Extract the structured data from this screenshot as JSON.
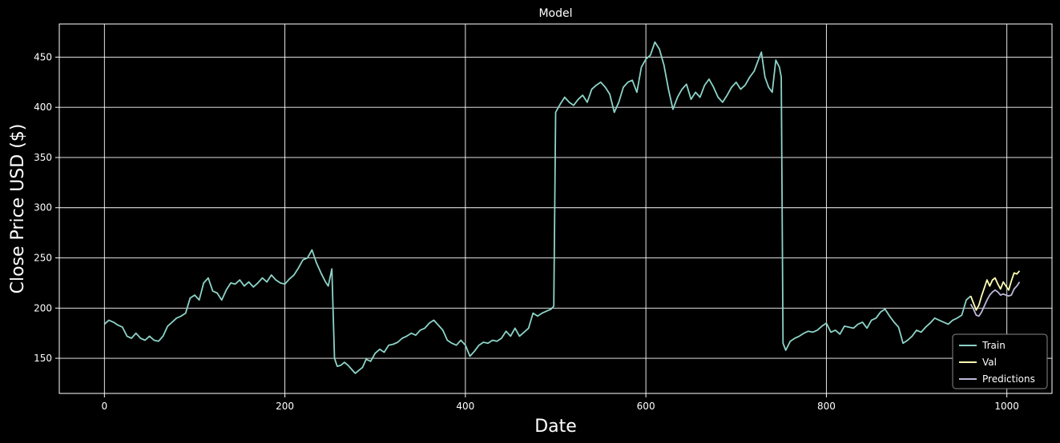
{
  "chart_data": {
    "type": "line",
    "title": "Model",
    "xlabel": "Date",
    "ylabel": "Close Price USD ($)",
    "xlim": [
      -50,
      1050
    ],
    "ylim": [
      115,
      483
    ],
    "xticks": [
      0,
      200,
      400,
      600,
      800,
      1000
    ],
    "yticks": [
      150,
      200,
      250,
      300,
      350,
      400,
      450
    ],
    "grid": true,
    "legend_position": "bottom-right",
    "background": "#000000",
    "series": [
      {
        "name": "Train",
        "color": "#8dd3c7",
        "points": [
          [
            0,
            184
          ],
          [
            5,
            188
          ],
          [
            10,
            186
          ],
          [
            15,
            183
          ],
          [
            20,
            181
          ],
          [
            25,
            172
          ],
          [
            30,
            170
          ],
          [
            35,
            175
          ],
          [
            40,
            170
          ],
          [
            45,
            168
          ],
          [
            50,
            172
          ],
          [
            55,
            168
          ],
          [
            60,
            167
          ],
          [
            65,
            172
          ],
          [
            70,
            182
          ],
          [
            75,
            186
          ],
          [
            80,
            190
          ],
          [
            85,
            192
          ],
          [
            90,
            195
          ],
          [
            95,
            210
          ],
          [
            100,
            213
          ],
          [
            105,
            208
          ],
          [
            110,
            225
          ],
          [
            115,
            230
          ],
          [
            120,
            217
          ],
          [
            125,
            215
          ],
          [
            130,
            208
          ],
          [
            135,
            218
          ],
          [
            140,
            225
          ],
          [
            145,
            224
          ],
          [
            150,
            228
          ],
          [
            155,
            222
          ],
          [
            160,
            226
          ],
          [
            165,
            221
          ],
          [
            170,
            225
          ],
          [
            175,
            230
          ],
          [
            180,
            226
          ],
          [
            185,
            233
          ],
          [
            190,
            228
          ],
          [
            195,
            225
          ],
          [
            200,
            224
          ],
          [
            205,
            229
          ],
          [
            210,
            233
          ],
          [
            215,
            240
          ],
          [
            220,
            248
          ],
          [
            225,
            250
          ],
          [
            230,
            258
          ],
          [
            235,
            245
          ],
          [
            240,
            235
          ],
          [
            245,
            226
          ],
          [
            248,
            222
          ],
          [
            252,
            239
          ],
          [
            255,
            150
          ],
          [
            258,
            142
          ],
          [
            262,
            143
          ],
          [
            266,
            146
          ],
          [
            270,
            143
          ],
          [
            274,
            139
          ],
          [
            278,
            135
          ],
          [
            282,
            138
          ],
          [
            286,
            141
          ],
          [
            290,
            149
          ],
          [
            295,
            147
          ],
          [
            300,
            155
          ],
          [
            305,
            159
          ],
          [
            310,
            156
          ],
          [
            315,
            163
          ],
          [
            320,
            164
          ],
          [
            325,
            166
          ],
          [
            330,
            170
          ],
          [
            335,
            172
          ],
          [
            340,
            175
          ],
          [
            345,
            173
          ],
          [
            350,
            178
          ],
          [
            355,
            180
          ],
          [
            360,
            185
          ],
          [
            365,
            188
          ],
          [
            370,
            183
          ],
          [
            375,
            178
          ],
          [
            380,
            168
          ],
          [
            385,
            165
          ],
          [
            390,
            163
          ],
          [
            395,
            168
          ],
          [
            400,
            163
          ],
          [
            405,
            152
          ],
          [
            410,
            157
          ],
          [
            415,
            163
          ],
          [
            420,
            166
          ],
          [
            425,
            165
          ],
          [
            430,
            168
          ],
          [
            435,
            167
          ],
          [
            440,
            170
          ],
          [
            445,
            177
          ],
          [
            450,
            172
          ],
          [
            455,
            180
          ],
          [
            460,
            172
          ],
          [
            465,
            176
          ],
          [
            470,
            180
          ],
          [
            475,
            195
          ],
          [
            480,
            192
          ],
          [
            485,
            195
          ],
          [
            490,
            197
          ],
          [
            495,
            199
          ],
          [
            498,
            202
          ],
          [
            500,
            395
          ],
          [
            505,
            403
          ],
          [
            510,
            410
          ],
          [
            515,
            405
          ],
          [
            520,
            402
          ],
          [
            525,
            408
          ],
          [
            530,
            412
          ],
          [
            535,
            405
          ],
          [
            540,
            418
          ],
          [
            545,
            422
          ],
          [
            550,
            425
          ],
          [
            555,
            420
          ],
          [
            560,
            413
          ],
          [
            565,
            395
          ],
          [
            570,
            405
          ],
          [
            575,
            420
          ],
          [
            580,
            425
          ],
          [
            585,
            427
          ],
          [
            590,
            415
          ],
          [
            595,
            440
          ],
          [
            600,
            448
          ],
          [
            605,
            452
          ],
          [
            610,
            465
          ],
          [
            615,
            458
          ],
          [
            620,
            442
          ],
          [
            625,
            418
          ],
          [
            630,
            398
          ],
          [
            635,
            410
          ],
          [
            640,
            418
          ],
          [
            645,
            423
          ],
          [
            650,
            408
          ],
          [
            655,
            415
          ],
          [
            660,
            410
          ],
          [
            665,
            422
          ],
          [
            670,
            428
          ],
          [
            675,
            420
          ],
          [
            680,
            410
          ],
          [
            685,
            405
          ],
          [
            690,
            412
          ],
          [
            695,
            420
          ],
          [
            700,
            425
          ],
          [
            705,
            418
          ],
          [
            710,
            422
          ],
          [
            715,
            430
          ],
          [
            720,
            436
          ],
          [
            725,
            448
          ],
          [
            728,
            455
          ],
          [
            732,
            430
          ],
          [
            736,
            420
          ],
          [
            740,
            415
          ],
          [
            744,
            447
          ],
          [
            748,
            440
          ],
          [
            750,
            430
          ],
          [
            752,
            165
          ],
          [
            755,
            158
          ],
          [
            760,
            167
          ],
          [
            765,
            170
          ],
          [
            770,
            172
          ],
          [
            775,
            175
          ],
          [
            780,
            177
          ],
          [
            785,
            176
          ],
          [
            790,
            178
          ],
          [
            795,
            182
          ],
          [
            800,
            185
          ],
          [
            805,
            176
          ],
          [
            810,
            178
          ],
          [
            815,
            174
          ],
          [
            820,
            182
          ],
          [
            825,
            181
          ],
          [
            830,
            180
          ],
          [
            835,
            184
          ],
          [
            840,
            186
          ],
          [
            845,
            180
          ],
          [
            850,
            188
          ],
          [
            855,
            190
          ],
          [
            860,
            196
          ],
          [
            865,
            199
          ],
          [
            870,
            192
          ],
          [
            875,
            186
          ],
          [
            880,
            181
          ],
          [
            885,
            165
          ],
          [
            890,
            168
          ],
          [
            895,
            172
          ],
          [
            900,
            178
          ],
          [
            905,
            176
          ],
          [
            910,
            181
          ],
          [
            915,
            185
          ],
          [
            920,
            190
          ],
          [
            925,
            188
          ],
          [
            930,
            186
          ],
          [
            935,
            184
          ],
          [
            940,
            188
          ],
          [
            945,
            190
          ],
          [
            950,
            193
          ],
          [
            955,
            208
          ],
          [
            960,
            212
          ]
        ]
      },
      {
        "name": "Val",
        "color": "#ffffb3",
        "points": [
          [
            960,
            212
          ],
          [
            963,
            205
          ],
          [
            966,
            198
          ],
          [
            969,
            203
          ],
          [
            972,
            212
          ],
          [
            975,
            220
          ],
          [
            978,
            228
          ],
          [
            981,
            222
          ],
          [
            984,
            228
          ],
          [
            987,
            230
          ],
          [
            990,
            224
          ],
          [
            993,
            219
          ],
          [
            996,
            226
          ],
          [
            999,
            222
          ],
          [
            1002,
            218
          ],
          [
            1005,
            227
          ],
          [
            1008,
            235
          ],
          [
            1011,
            234
          ],
          [
            1014,
            237
          ]
        ]
      },
      {
        "name": "Predictions",
        "color": "#bebada",
        "points": [
          [
            960,
            204
          ],
          [
            963,
            199
          ],
          [
            966,
            193
          ],
          [
            969,
            192
          ],
          [
            972,
            196
          ],
          [
            975,
            202
          ],
          [
            978,
            208
          ],
          [
            981,
            213
          ],
          [
            984,
            216
          ],
          [
            987,
            218
          ],
          [
            990,
            216
          ],
          [
            993,
            213
          ],
          [
            996,
            214
          ],
          [
            999,
            213
          ],
          [
            1002,
            212
          ],
          [
            1005,
            213
          ],
          [
            1008,
            219
          ],
          [
            1011,
            222
          ],
          [
            1014,
            226
          ]
        ]
      }
    ]
  }
}
